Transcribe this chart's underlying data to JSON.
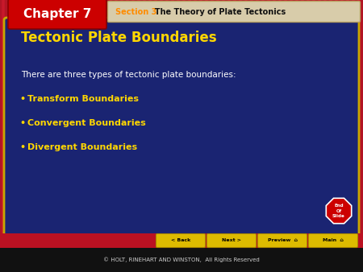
{
  "bg_color": "#c8192b",
  "slide_bg": "#1a2472",
  "slide_border": "#c8a800",
  "chapter_box_color": "#cc0000",
  "chapter_text": "Chapter 7",
  "chapter_text_color": "#ffffff",
  "section_label": "Section 3",
  "section_rest": "  The Theory of Plate Tectonics",
  "section_color_bold": "#ff8c00",
  "section_color_rest": "#1a1a1a",
  "header_bg": "#d8ccaa",
  "header_border": "#b8a060",
  "title": "Tectonic Plate Boundaries",
  "title_color": "#ffd700",
  "body_text": "There are three types of tectonic plate boundaries:",
  "body_text_color": "#ffffff",
  "bullets": [
    "Transform Boundaries",
    "Convergent Boundaries",
    "Divergent Boundaries"
  ],
  "bullet_color": "#ffd700",
  "footer_text": "© HOLT, RINEHART AND WINSTON,  All Rights Reserved",
  "footer_bg": "#111111",
  "footer_text_color": "#cccccc",
  "nav_bg": "#ddbb00",
  "nav_text_color": "#000000",
  "nav_border": "#aa8800",
  "nav_buttons": [
    "< Back",
    "Next >",
    "Preview  ⌂",
    "Main  ⌂"
  ],
  "end_slide_text": "End\nOf\nSlide",
  "stripe_color": "#a01020",
  "stripe_alpha": 0.55
}
